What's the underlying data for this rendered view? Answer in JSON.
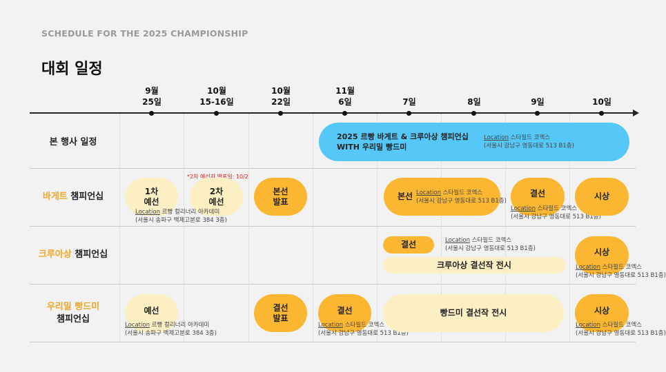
{
  "eyebrow": "SCHEDULE FOR THE 2025 CHAMPIONSHIP",
  "title": "대회 일정",
  "timeline": {
    "dates": [
      {
        "line1": "9월",
        "line2": "25일"
      },
      {
        "line1": "10월",
        "line2": "15-16일"
      },
      {
        "line1": "10월",
        "line2": "22일"
      },
      {
        "line1": "11월",
        "line2": "6일"
      },
      {
        "line1": "",
        "line2": "7일"
      },
      {
        "line1": "",
        "line2": "8일"
      },
      {
        "line1": "",
        "line2": "9일"
      },
      {
        "line1": "",
        "line2": "10일"
      }
    ]
  },
  "rows": {
    "main": {
      "label": "본 행사 일정"
    },
    "baguette": {
      "label_accent": "바게트",
      "label_rest": " 챔피언십"
    },
    "croissant": {
      "label_accent": "크루아상",
      "label_rest": " 챔피언십"
    },
    "bread": {
      "label_accent": "우리밀 빵드미",
      "label_rest": "챔피언십"
    }
  },
  "location_prefix": "Location",
  "events": {
    "main": {
      "line1": "2025 르빵 바게트 & 크루아상 챔피언십",
      "line2": "WITH 우리밀 빵드미",
      "venue": " 스타필드 코엑스",
      "address": "(서울시 강남구 영동대로 513 B1층)"
    },
    "baguette": {
      "prelim1_line1": "1차",
      "prelim1_line2": "예선",
      "prelim2_line1": "2차",
      "prelim2_line2": "예선",
      "note": "*2차 예선자 발표일: 10/2",
      "prelim_venue": " 르빵 컬리너리 아카데미",
      "prelim_address": "(서울시 송파구 백제고분로 384 3층)",
      "announce_line1": "본선",
      "announce_line2": "발표",
      "mainround": "본선",
      "mainround_venue": " 스타필드 코엑스",
      "mainround_address": "(서울시 강남구 영동대로 513 B1층)",
      "final": "결선",
      "final_venue": " 스타필드 코엑스",
      "final_address": "(서울시 강남구 영동대로 513 B1층)",
      "award": "시상"
    },
    "croissant": {
      "final": "결선",
      "final_venue": " 스타필드 코엑스",
      "final_address": "(서울시 강남구 영동대로 513 B1층)",
      "exhibit": "크루아상 결선작 전시",
      "award": "시상",
      "award_venue": " 스타필드 코엑스",
      "award_address": "(서울시 강남구 영동대로 513 B1층)"
    },
    "bread": {
      "prelim": "예선",
      "prelim_venue": " 르빵 컬리너리 아카데미",
      "prelim_address": "(서울시 송파구 백제고분로 384 3층)",
      "announce_line1": "결선",
      "announce_line2": "발표",
      "final": "결선",
      "final_venue": " 스타필드 코엑스",
      "final_address": "(서울시 강남구 영동대로 513 B1층)",
      "exhibit": "빵드미 결선작 전시",
      "award": "시상",
      "award_venue": " 스타필드 코엑스",
      "award_address": "(서울시 강남구 영동대로 513 B1층)"
    }
  },
  "colors": {
    "blue": "#56c8f8",
    "orange": "#fbb732",
    "light": "#fdefc4",
    "accent_text": "#f5a623",
    "note_red": "#e0211b"
  }
}
